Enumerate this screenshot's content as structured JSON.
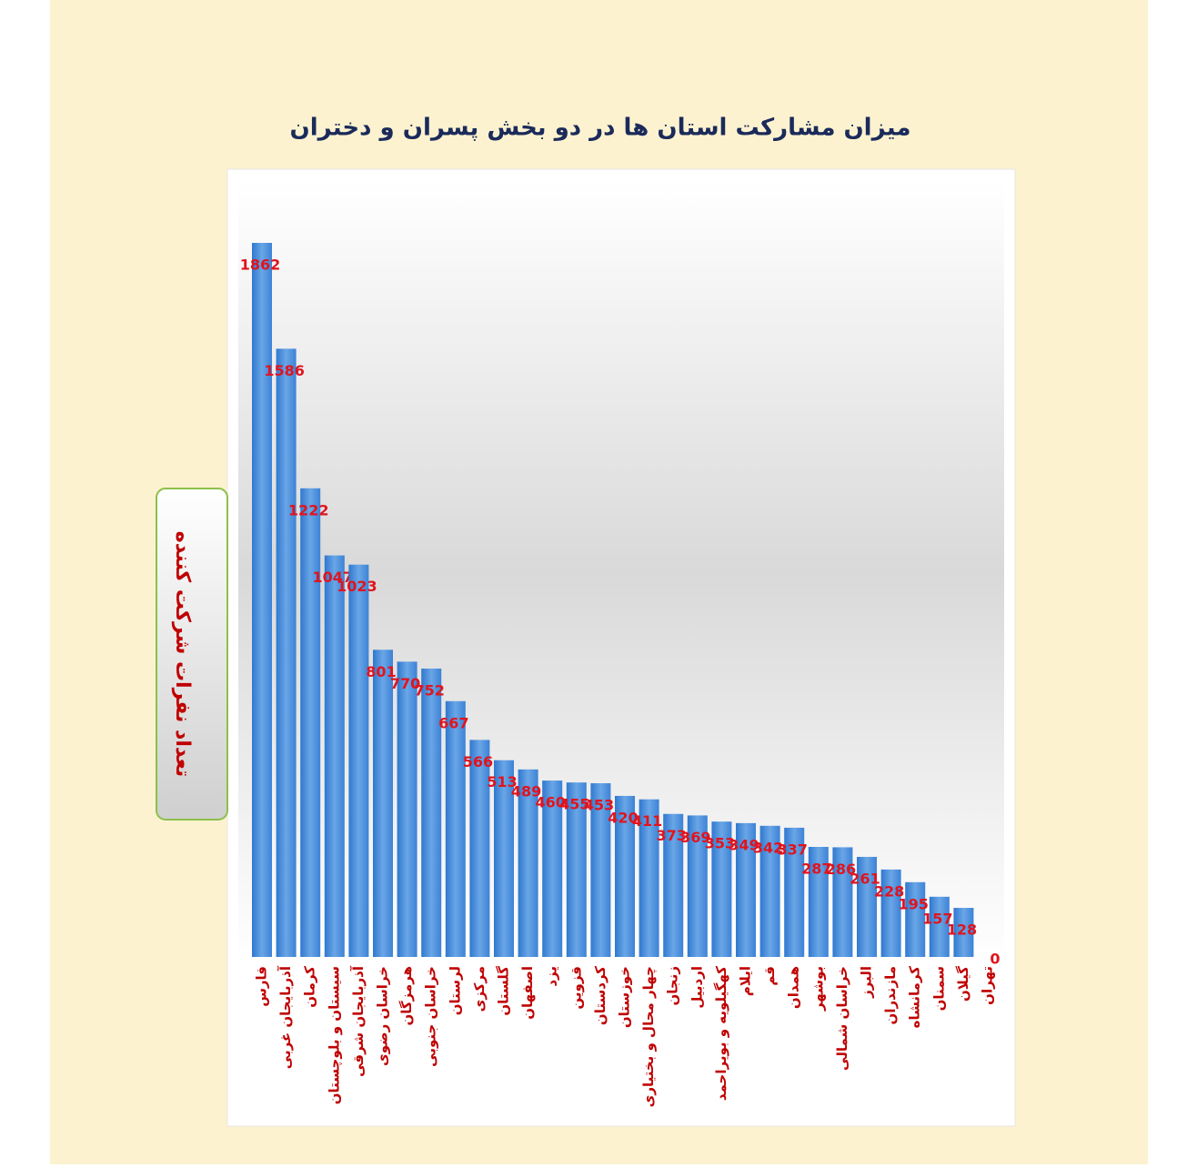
{
  "chart_data": {
    "type": "bar",
    "title": "میزان مشارکت استان ها در دو بخش پسران و دختران",
    "y_label": "تعداد نفرات شرکت کننده",
    "categories": [
      "فارس",
      "آذربایجان غربی",
      "کرمان",
      "سیستان و بلوچستان",
      "آذربایجان شرقی",
      "خراسان رضوی",
      "هرمزگان",
      "خراسان جنوبی",
      "لرستان",
      "مرکزی",
      "گلستان",
      "اصفهان",
      "یزد",
      "قزوین",
      "کردستان",
      "خوزستان",
      "چهار محال و بختیاری",
      "زنجان",
      "اردبیل",
      "کهگیلویه و بویراحمد",
      "ایلام",
      "قم",
      "همدان",
      "بوشهر",
      "خراسان شمالی",
      "البرز",
      "مازندران",
      "کرمانشاه",
      "سمنان",
      "گیلان",
      "تهران"
    ],
    "values": [
      1862,
      1586,
      1222,
      1047,
      1023,
      801,
      770,
      752,
      667,
      566,
      513,
      489,
      460,
      455,
      453,
      420,
      411,
      373,
      369,
      353,
      349,
      342,
      337,
      287,
      286,
      261,
      228,
      195,
      157,
      128,
      0
    ],
    "color": "#4a8fdc",
    "label_color": "#e0141e",
    "category_color": "#c00000"
  }
}
